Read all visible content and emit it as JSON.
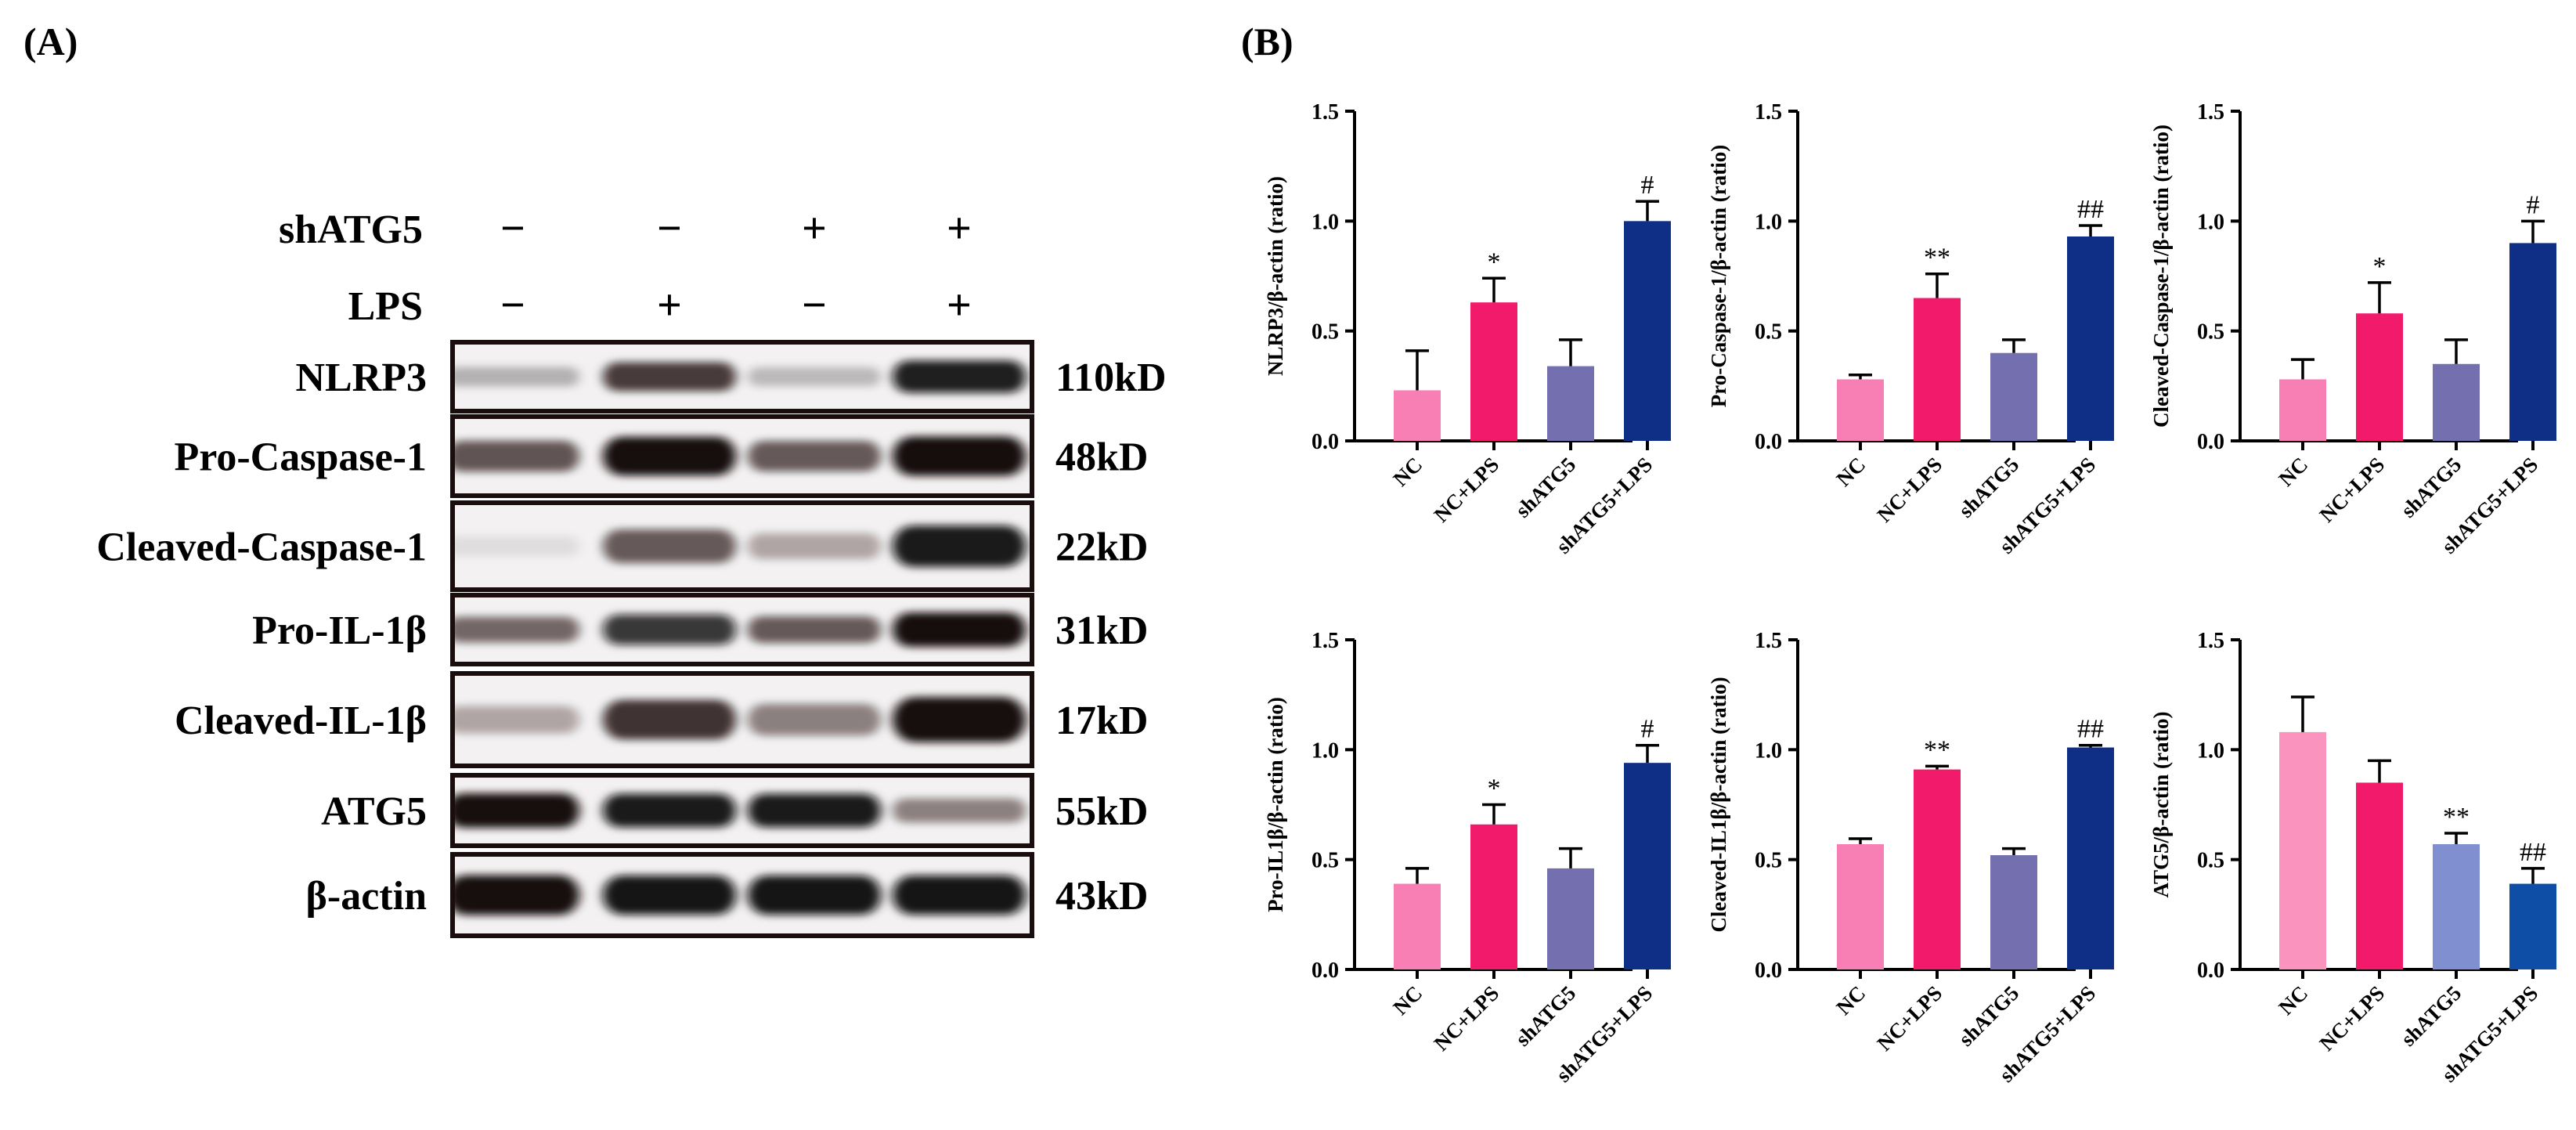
{
  "panel_a": {
    "label": "(A)",
    "conditions": [
      {
        "name": "shATG5",
        "signs": [
          "−",
          "−",
          "+",
          "+"
        ]
      },
      {
        "name": "LPS",
        "signs": [
          "−",
          "+",
          "−",
          "+"
        ]
      }
    ],
    "blots": [
      {
        "protein": "NLRP3",
        "size": "110kD",
        "intensity": [
          0.25,
          0.72,
          0.22,
          0.88
        ]
      },
      {
        "protein": "Pro-Caspase-1",
        "size": "48kD",
        "intensity": [
          0.62,
          0.95,
          0.6,
          0.98
        ]
      },
      {
        "protein": "Cleaved-Caspase-1",
        "size": "22kD",
        "intensity": [
          0.08,
          0.6,
          0.3,
          0.9
        ]
      },
      {
        "protein": "Pro-IL-1β",
        "size": "31kD",
        "intensity": [
          0.55,
          0.78,
          0.6,
          0.98
        ]
      },
      {
        "protein": "Cleaved-IL-1β",
        "size": "17kD",
        "intensity": [
          0.3,
          0.75,
          0.45,
          0.95
        ]
      },
      {
        "protein": "ATG5",
        "size": "55kD",
        "intensity": [
          0.95,
          0.9,
          0.9,
          0.45
        ]
      },
      {
        "protein": "β-actin",
        "size": "43kD",
        "intensity": [
          0.95,
          0.92,
          0.92,
          0.92
        ]
      }
    ]
  },
  "panel_b": {
    "label": "(B)"
  },
  "chart_data": [
    {
      "type": "bar",
      "ylabel": "NLRP3/β-actin (ratio)",
      "ylim": [
        0,
        1.5
      ],
      "yticks": [
        "0.0",
        "0.5",
        "1.0",
        "1.5"
      ],
      "categories": [
        "NC",
        "NC+LPS",
        "shATG5",
        "shATG5+LPS"
      ],
      "values": [
        0.23,
        0.63,
        0.34,
        1.0
      ],
      "errors": [
        0.18,
        0.11,
        0.12,
        0.09
      ],
      "annotations": [
        "",
        "*",
        "",
        "#"
      ],
      "colors": [
        "#f87fb3",
        "#f21a6b",
        "#7470b0",
        "#0f2e86"
      ]
    },
    {
      "type": "bar",
      "ylabel": "Pro-Caspase-1/β-actin (ratio)",
      "ylim": [
        0,
        1.5
      ],
      "yticks": [
        "0.0",
        "0.5",
        "1.0",
        "1.5"
      ],
      "categories": [
        "NC",
        "NC+LPS",
        "shATG5",
        "shATG5+LPS"
      ],
      "values": [
        0.28,
        0.65,
        0.4,
        0.93
      ],
      "errors": [
        0.02,
        0.11,
        0.06,
        0.05
      ],
      "annotations": [
        "",
        "**",
        "",
        "##"
      ],
      "colors": [
        "#f87fb3",
        "#f21a6b",
        "#7470b0",
        "#0f2e86"
      ]
    },
    {
      "type": "bar",
      "ylabel": "Cleaved-Caspase-1/β-actin (ratio)",
      "ylim": [
        0,
        1.5
      ],
      "yticks": [
        "0.0",
        "0.5",
        "1.0",
        "1.5"
      ],
      "categories": [
        "NC",
        "NC+LPS",
        "shATG5",
        "shATG5+LPS"
      ],
      "values": [
        0.28,
        0.58,
        0.35,
        0.9
      ],
      "errors": [
        0.09,
        0.14,
        0.11,
        0.1
      ],
      "annotations": [
        "",
        "*",
        "",
        "#"
      ],
      "colors": [
        "#f87fb3",
        "#f21a6b",
        "#7470b0",
        "#0f2e86"
      ]
    },
    {
      "type": "bar",
      "ylabel": "Pro-IL1β/β-actin (ratio)",
      "ylim": [
        0,
        1.5
      ],
      "yticks": [
        "0.0",
        "0.5",
        "1.0",
        "1.5"
      ],
      "categories": [
        "NC",
        "NC+LPS",
        "shATG5",
        "shATG5+LPS"
      ],
      "values": [
        0.39,
        0.66,
        0.46,
        0.94
      ],
      "errors": [
        0.07,
        0.09,
        0.09,
        0.08
      ],
      "annotations": [
        "",
        "*",
        "",
        "#"
      ],
      "colors": [
        "#f87fb3",
        "#f21a6b",
        "#7470b0",
        "#0f2e86"
      ]
    },
    {
      "type": "bar",
      "ylabel": "Cleaved-IL1β/β-actin (ratio)",
      "ylim": [
        0,
        1.5
      ],
      "yticks": [
        "0.0",
        "0.5",
        "1.0",
        "1.5"
      ],
      "categories": [
        "NC",
        "NC+LPS",
        "shATG5",
        "shATG5+LPS"
      ],
      "values": [
        0.57,
        0.91,
        0.52,
        1.01
      ],
      "errors": [
        0.025,
        0.015,
        0.03,
        0.01
      ],
      "annotations": [
        "",
        "**",
        "",
        "##"
      ],
      "colors": [
        "#f87fb3",
        "#f21a6b",
        "#7470b0",
        "#0f2e86"
      ]
    },
    {
      "type": "bar",
      "ylabel": "ATG5/β-actin (ratio)",
      "ylim": [
        0,
        1.5
      ],
      "yticks": [
        "0.0",
        "0.5",
        "1.0",
        "1.5"
      ],
      "categories": [
        "NC",
        "NC+LPS",
        "shATG5",
        "shATG5+LPS"
      ],
      "values": [
        1.08,
        0.85,
        0.57,
        0.39
      ],
      "errors": [
        0.16,
        0.1,
        0.05,
        0.07
      ],
      "annotations": [
        "",
        "",
        "**",
        "##"
      ],
      "colors": [
        "#fb93bf",
        "#f21a6b",
        "#7f8fd0",
        "#0f4ea6"
      ]
    }
  ]
}
